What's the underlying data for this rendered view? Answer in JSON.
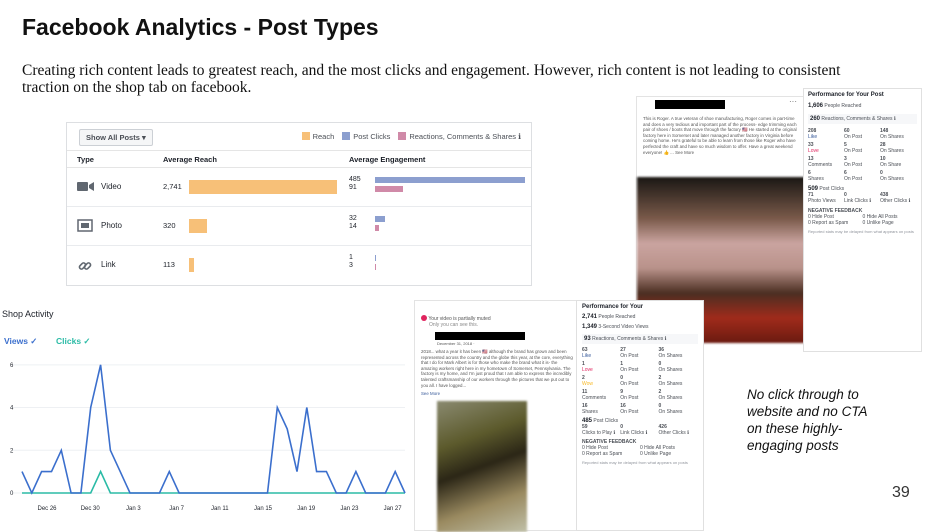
{
  "slide": {
    "title": "Facebook Analytics - Post Types",
    "subtitle": "Creating rich content leads to greatest reach, and the most clicks and engagement. However, rich content is not leading to consistent traction on the shop tab on facebook.",
    "note": "No click through to website and no CTA on these highly-engaging posts",
    "page_number": "39"
  },
  "post_types": {
    "dropdown": "Show All Posts ▾",
    "legend": [
      "Reach",
      "Post Clicks",
      "Reactions, Comments & Shares ℹ"
    ],
    "colors": {
      "reach": "#f7c078",
      "clicks": "#8c9fcf",
      "reactions": "#d08aa8"
    },
    "headers": {
      "type": "Type",
      "reach": "Average Reach",
      "engagement": "Average Engagement"
    },
    "rows": [
      {
        "name": "Video",
        "icon": "video-camera-icon",
        "reach": "2,741",
        "clicks": "485",
        "reactions": "91"
      },
      {
        "name": "Photo",
        "icon": "photo-icon",
        "reach": "320",
        "clicks": "32",
        "reactions": "14"
      },
      {
        "name": "Link",
        "icon": "link-icon",
        "reach": "113",
        "clicks": "1",
        "reactions": "3"
      }
    ]
  },
  "shop": {
    "title": "Shop Activity",
    "tabs": [
      "Views ✓",
      "Clicks ✓"
    ],
    "colors": {
      "views": "#3b6fcd",
      "clicks": "#2bbba6"
    }
  },
  "chart_data": {
    "type": "line",
    "x_ticks": [
      "Dec 26",
      "Dec 30",
      "Jan 3",
      "Jan 7",
      "Jan 11",
      "Jan 15",
      "Jan 19",
      "Jan 23",
      "Jan 27"
    ],
    "y_ticks": [
      "0",
      "2",
      "4",
      "6"
    ],
    "ylim": [
      0,
      6.6
    ],
    "series": [
      {
        "name": "Views",
        "values": [
          1,
          0,
          1,
          1,
          2,
          0,
          0,
          4,
          6,
          2,
          1,
          0,
          0,
          0,
          0,
          1,
          0,
          0,
          0,
          0,
          0,
          0,
          0,
          0,
          0,
          0,
          4,
          3,
          1,
          4,
          1,
          1,
          0,
          0,
          1,
          0,
          0,
          0,
          1,
          0
        ]
      },
      {
        "name": "Clicks",
        "values": [
          0,
          0,
          0,
          0,
          0,
          0,
          0,
          0,
          1,
          0,
          0,
          0,
          0,
          0,
          0,
          0,
          0,
          0,
          0,
          0,
          0,
          0,
          0,
          0,
          0,
          0,
          0,
          0,
          0,
          0,
          0,
          0,
          0,
          0,
          0,
          0,
          0,
          0,
          0,
          0
        ]
      }
    ]
  },
  "post_a": {
    "text": "This is Roger. A true veteran of shoe manufacturing, Roger comes in part-time and does a very tedious and important part of the process- edge trimming each pair of shoes / boots that move through the factory 🇺🇸 He started at the original factory here in Somerset and later managed another factory in Virginia before coming home. He's grateful to be able to learn from those like Roger who have perfected the craft and have so much wisdom to offer. Have a great weekend everyone! 👍 ... See More"
  },
  "perf_a": {
    "title": "Performance for Your Post",
    "reach": "1,606",
    "reach_label": "People Reached",
    "engagement": "260",
    "engagement_label": "Reactions, Comments & Shares ℹ",
    "rows": [
      [
        "208",
        "Like",
        "60",
        "On Post",
        "148",
        "On Shares"
      ],
      [
        "33",
        "Love",
        "5",
        "On Post",
        "28",
        "On Shares"
      ],
      [
        "13",
        "Comments",
        "3",
        "On Post",
        "10",
        "On Share"
      ],
      [
        "6",
        "Shares",
        "6",
        "On Post",
        "0",
        "On Shares"
      ]
    ],
    "clicks": "509",
    "clicks_label": "Post Clicks",
    "click_rows": [
      "71",
      "Photo Views",
      "0",
      "Link Clicks ℹ",
      "438",
      "Other Clicks ℹ"
    ],
    "neg_title": "NEGATIVE FEEDBACK",
    "neg": [
      "0 Hide Post",
      "0 Hide All Posts",
      "0 Report as Spam",
      "0 Unlike Page"
    ],
    "foot": "Reported stats may be delayed from what appears on posts"
  },
  "post_b": {
    "muted": "Your video is partially muted",
    "visible": "Only you can see this.",
    "date": "December 31, 2018 ·",
    "text": "2018... what a year it has been 🇺🇸 although the brand has grown and been represented across the country and the globe this year, at the core, everything that I do for Mark Albert is for those who make the brand what it is- the amazing workers right here in my hometown of Somerset, Pennsylvania. The factory is my home, and I'm just proud that I am able to express the incredibly talented craftsmanship of our workers through the pictures that we put out to you all. I have logged...",
    "see_more": "See More"
  },
  "perf_b": {
    "title": "Performance for Your",
    "reach": "2,741",
    "reach_label": "People Reached",
    "views": "1,349",
    "views_label": "3-Second Video Views",
    "engagement": "93",
    "engagement_label": "Reactions, Comments & Shares ℹ",
    "rows": [
      [
        "63",
        "Like",
        "27",
        "On Post",
        "36",
        "On Shares"
      ],
      [
        "1",
        "Love",
        "1",
        "On Post",
        "0",
        "On Shares"
      ],
      [
        "2",
        "Wow",
        "0",
        "On Post",
        "2",
        "On Shares"
      ],
      [
        "11",
        "Comments",
        "9",
        "On Post",
        "2",
        "On Shares"
      ],
      [
        "16",
        "Shares",
        "16",
        "On Post",
        "0",
        "On Shares"
      ]
    ],
    "clicks": "485",
    "clicks_label": "Post Clicks",
    "click_rows": [
      "59",
      "Clicks to Play ℹ",
      "0",
      "Link Clicks ℹ",
      "426",
      "Other Clicks ℹ"
    ],
    "neg_title": "NEGATIVE FEEDBACK",
    "neg": [
      "0 Hide Post",
      "0 Hide All Posts",
      "0 Report as Spam",
      "0 Unlike Page"
    ],
    "foot": "Reported stats may be delayed from what appears on posts"
  }
}
